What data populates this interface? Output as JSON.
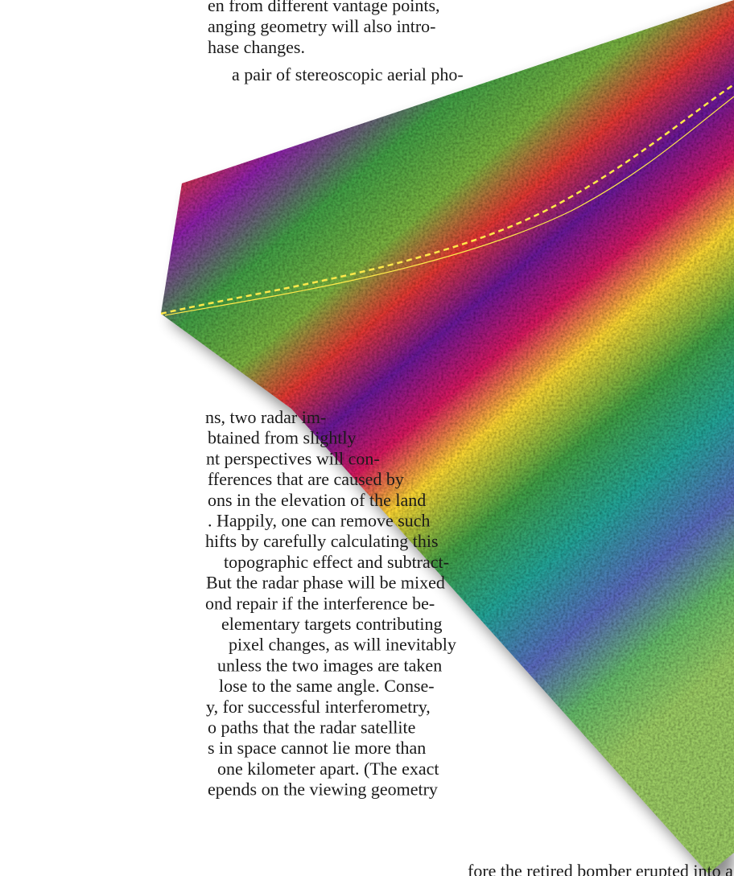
{
  "top_text": {
    "lines": [
      "en from different vantage points,",
      "anging geometry will also intro-",
      "hase changes.",
      "a pair of stereoscopic aerial pho-"
    ]
  },
  "left_column": {
    "lines": [
      "ns, two radar im-",
      "btained from slightly",
      "nt perspectives will con-",
      "fferences that are caused by",
      "ons in the elevation of the land",
      ". Happily, one can remove such",
      "hifts by carefully calculating this",
      "topographic effect and subtract-",
      "But the radar phase will be mixed",
      "ond repair if the interference be-",
      "elementary targets contributing",
      "pixel changes, as will inevitably",
      "unless the two images are taken",
      "lose to the same angle. Conse-",
      "y, for successful interferometry,",
      "o paths that the radar satellite",
      "s in space cannot lie more than",
      "one kilometer apart. (The exact",
      "epends on the viewing geometry"
    ]
  },
  "right_column": {
    "lines": [
      "fore the retired bomber erupted into a"
    ]
  }
}
